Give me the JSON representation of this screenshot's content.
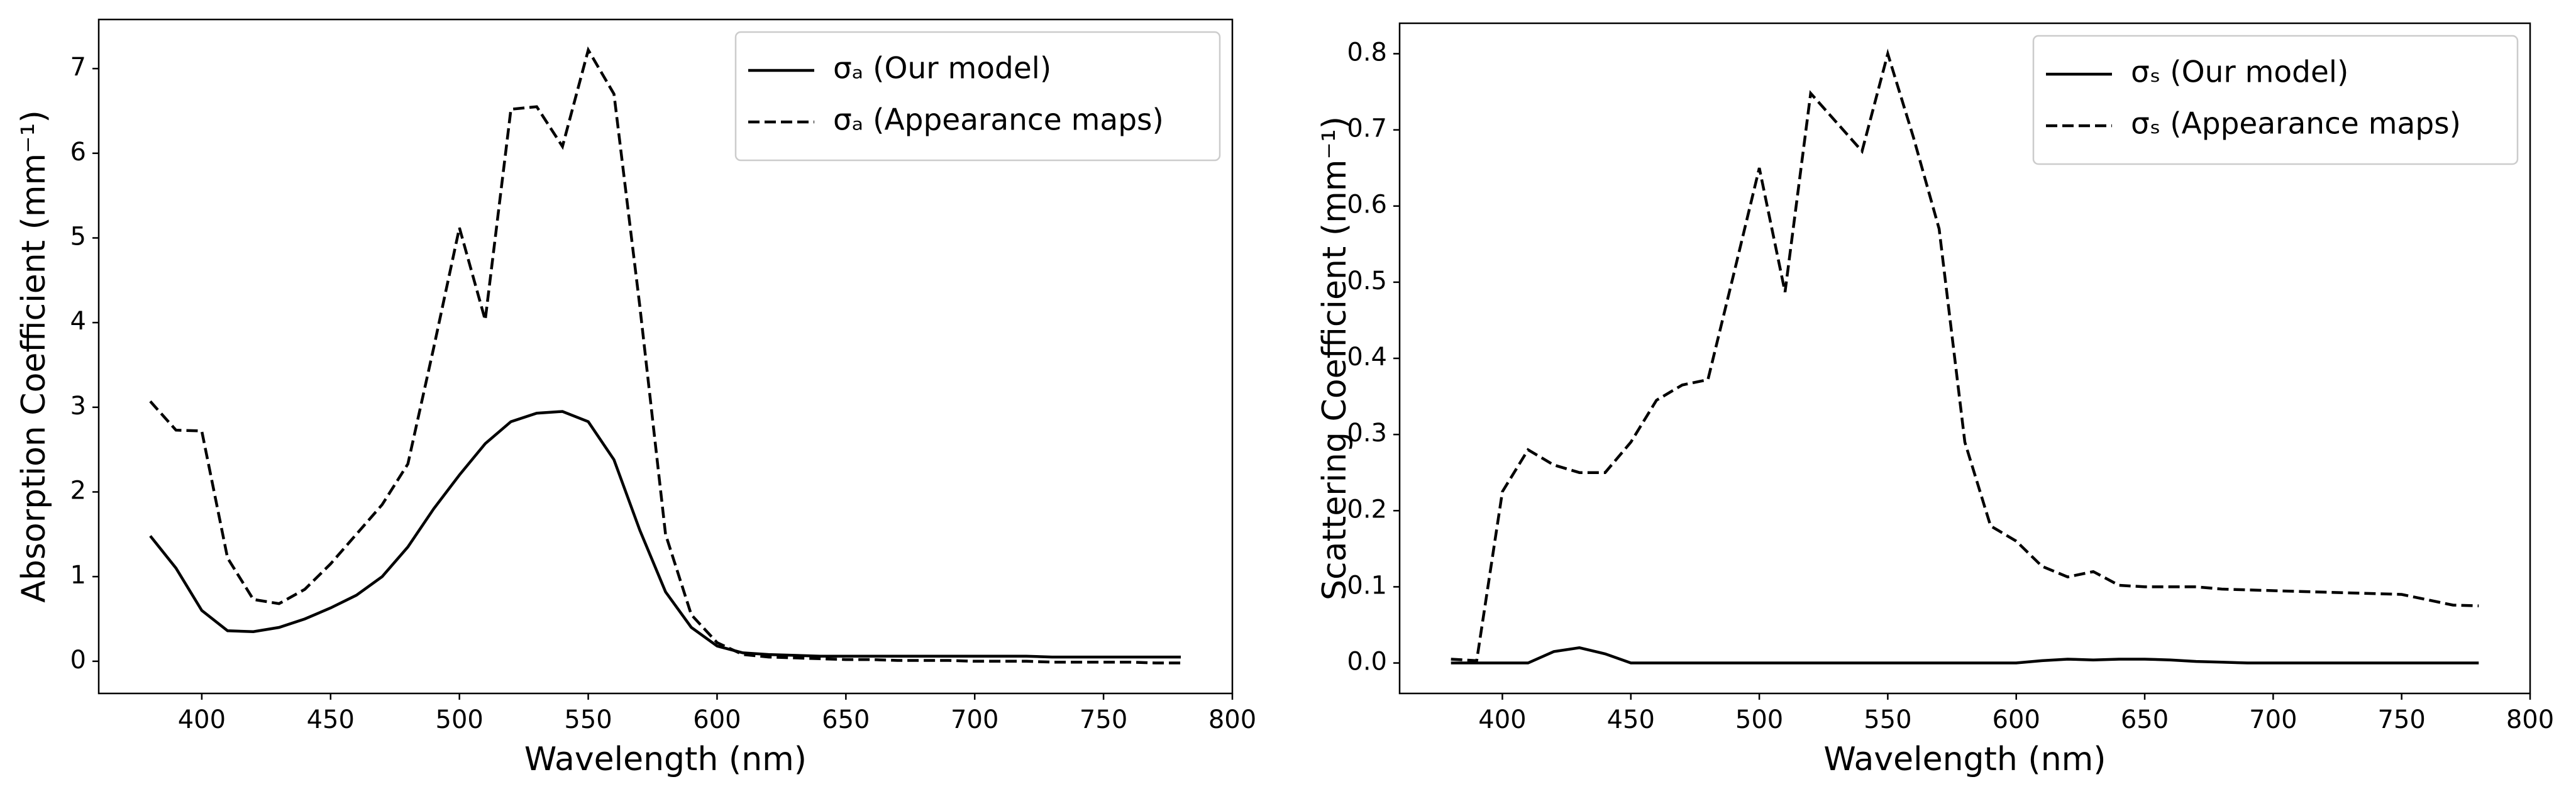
{
  "chart_data": [
    {
      "type": "line",
      "xlabel": "Wavelength (nm)",
      "ylabel": "Absorption Coefficient (mm⁻¹)",
      "x": [
        380,
        390,
        400,
        410,
        420,
        430,
        440,
        450,
        460,
        470,
        480,
        490,
        500,
        510,
        520,
        530,
        540,
        550,
        560,
        570,
        580,
        590,
        600,
        610,
        620,
        630,
        640,
        650,
        660,
        670,
        680,
        690,
        700,
        710,
        720,
        730,
        740,
        750,
        760,
        770,
        780
      ],
      "series": [
        {
          "name": "σₐ (Our model)",
          "color": "#000000",
          "linestyle": "solid",
          "values": [
            1.48,
            1.1,
            0.6,
            0.36,
            0.35,
            0.4,
            0.5,
            0.63,
            0.78,
            1.0,
            1.35,
            1.8,
            2.2,
            2.57,
            2.83,
            2.93,
            2.95,
            2.83,
            2.38,
            1.55,
            0.82,
            0.4,
            0.18,
            0.1,
            0.08,
            0.07,
            0.06,
            0.06,
            0.06,
            0.06,
            0.06,
            0.06,
            0.06,
            0.06,
            0.06,
            0.05,
            0.05,
            0.05,
            0.05,
            0.05,
            0.05
          ]
        },
        {
          "name": "σₐ (Appearance maps)",
          "color": "#000000",
          "linestyle": "dashed",
          "values": [
            3.07,
            2.73,
            2.72,
            1.22,
            0.73,
            0.68,
            0.85,
            1.15,
            1.5,
            1.85,
            2.33,
            3.7,
            5.12,
            4.03,
            6.52,
            6.55,
            6.08,
            7.22,
            6.7,
            4.2,
            1.5,
            0.55,
            0.22,
            0.08,
            0.05,
            0.04,
            0.03,
            0.02,
            0.02,
            0.01,
            0.01,
            0.01,
            0.0,
            0.0,
            0.0,
            -0.01,
            -0.01,
            -0.01,
            -0.01,
            -0.02,
            -0.02
          ]
        }
      ],
      "xlim": [
        360,
        800
      ],
      "xticks": [
        400,
        450,
        500,
        550,
        600,
        650,
        700,
        750,
        800
      ],
      "ylim": [
        -0.38,
        7.58
      ],
      "yticks": [
        0,
        1,
        2,
        3,
        4,
        5,
        6,
        7
      ],
      "grid": false,
      "legend": "upper right"
    },
    {
      "type": "line",
      "xlabel": "Wavelength (nm)",
      "ylabel": "Scattering Coefficient (mm⁻¹)",
      "x": [
        380,
        390,
        400,
        410,
        420,
        430,
        440,
        450,
        460,
        470,
        480,
        490,
        500,
        510,
        520,
        530,
        540,
        550,
        560,
        570,
        580,
        590,
        600,
        610,
        620,
        630,
        640,
        650,
        660,
        670,
        680,
        690,
        700,
        710,
        720,
        730,
        740,
        750,
        760,
        770,
        780
      ],
      "series": [
        {
          "name": "σₛ (Our model)",
          "color": "#000000",
          "linestyle": "solid",
          "values": [
            0,
            0,
            0,
            0,
            0.015,
            0.02,
            0.012,
            0,
            0,
            0,
            0,
            0,
            0,
            0,
            0,
            0,
            0,
            0,
            0,
            0,
            0,
            0,
            0,
            0.003,
            0.005,
            0.004,
            0.005,
            0.005,
            0.004,
            0.002,
            0.001,
            0,
            0,
            0,
            0,
            0,
            0,
            0,
            0,
            0,
            0
          ]
        },
        {
          "name": "σₛ (Appearance maps)",
          "color": "#000000",
          "linestyle": "dashed",
          "values": [
            0.005,
            0.003,
            0.225,
            0.28,
            0.26,
            0.25,
            0.25,
            0.29,
            0.345,
            0.365,
            0.372,
            0.51,
            0.65,
            0.487,
            0.748,
            0.71,
            0.672,
            0.8,
            0.69,
            0.57,
            0.29,
            0.18,
            0.16,
            0.127,
            0.113,
            0.12,
            0.102,
            0.1,
            0.1,
            0.1,
            0.097,
            0.096,
            0.095,
            0.094,
            0.093,
            0.092,
            0.091,
            0.09,
            0.083,
            0.076,
            0.075
          ]
        }
      ],
      "xlim": [
        360,
        800
      ],
      "xticks": [
        400,
        450,
        500,
        550,
        600,
        650,
        700,
        750,
        800
      ],
      "ylim": [
        -0.04,
        0.84
      ],
      "yticks": [
        {
          "value": 0,
          "label": "0.0"
        },
        0.1,
        0.2,
        0.3,
        0.4,
        0.5,
        0.6,
        0.7,
        0.8
      ],
      "grid": false,
      "legend": "upper right"
    }
  ]
}
